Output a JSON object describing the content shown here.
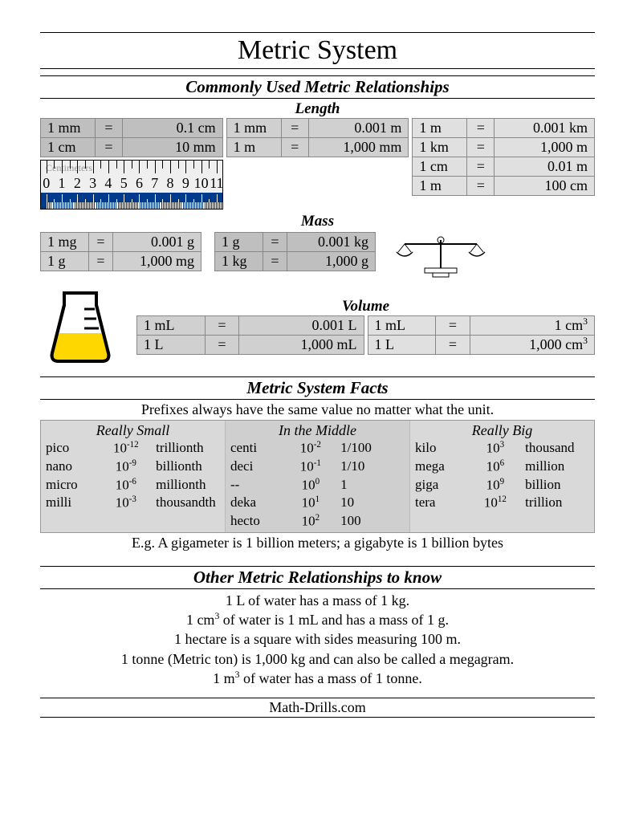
{
  "title": "Metric System",
  "section1": {
    "heading": "Commonly Used Metric Relationships",
    "length_label": "Length",
    "mass_label": "Mass",
    "volume_label": "Volume",
    "length": {
      "col1": [
        {
          "l": "1 mm",
          "r": "0.1 cm"
        },
        {
          "l": "1 cm",
          "r": "10 mm"
        }
      ],
      "col2": [
        {
          "l": "1 mm",
          "r": "0.001 m"
        },
        {
          "l": "1 m",
          "r": "1,000 mm"
        }
      ],
      "col3": [
        {
          "l": "1 m",
          "r": "0.001 km"
        },
        {
          "l": "1 km",
          "r": "1,000 m"
        },
        {
          "l": "1 cm",
          "r": "0.01 m"
        },
        {
          "l": "1 m",
          "r": "100 cm"
        }
      ]
    },
    "ruler_label": "Centimeters",
    "ruler_nums": [
      "0",
      "1",
      "2",
      "3",
      "4",
      "5",
      "6",
      "7",
      "8",
      "9",
      "10",
      "11"
    ],
    "mass": {
      "col1": [
        {
          "l": "1 mg",
          "r": "0.001 g"
        },
        {
          "l": "1 g",
          "r": "1,000 mg"
        }
      ],
      "col2": [
        {
          "l": "1 g",
          "r": "0.001 kg"
        },
        {
          "l": "1 kg",
          "r": "1,000 g"
        }
      ]
    },
    "volume": {
      "col1": [
        {
          "l": "1 mL",
          "r": "0.001 L"
        },
        {
          "l": "1 L",
          "r": "1,000 mL"
        }
      ],
      "col2": [
        {
          "l": "1 mL",
          "r_html": "1 cm<sup>3</sup>"
        },
        {
          "l": "1 L",
          "r_html": "1,000 cm<sup>3</sup>"
        }
      ]
    }
  },
  "section2": {
    "heading": "Metric System Facts",
    "intro": "Prefixes always have the same value no matter what the unit.",
    "cols": {
      "small": {
        "head": "Really Small",
        "rows": [
          {
            "p": "pico",
            "e": "-12",
            "w": "trillionth"
          },
          {
            "p": "nano",
            "e": "-9",
            "w": "billionth"
          },
          {
            "p": "micro",
            "e": "-6",
            "w": "millionth"
          },
          {
            "p": "milli",
            "e": "-3",
            "w": "thousandth"
          }
        ]
      },
      "mid": {
        "head": "In the Middle",
        "rows": [
          {
            "p": "centi",
            "e": "-2",
            "w": "1/100"
          },
          {
            "p": "deci",
            "e": "-1",
            "w": "1/10"
          },
          {
            "p": "--",
            "e": "0",
            "w": "1"
          },
          {
            "p": "deka",
            "e": "1",
            "w": "10"
          },
          {
            "p": "hecto",
            "e": "2",
            "w": "100"
          }
        ]
      },
      "big": {
        "head": "Really Big",
        "rows": [
          {
            "p": "kilo",
            "e": "3",
            "w": "thousand"
          },
          {
            "p": "mega",
            "e": "6",
            "w": "million"
          },
          {
            "p": "giga",
            "e": "9",
            "w": "billion"
          },
          {
            "p": "tera",
            "e": "12",
            "w": "trillion"
          }
        ]
      }
    },
    "example": "E.g. A gigameter is 1 billion meters; a gigabyte is 1 billion bytes"
  },
  "section3": {
    "heading": "Other Metric Relationships to know",
    "lines": [
      "1 L of water has a mass of 1 kg.",
      "1 cm<sup>3</sup> of water is 1 mL and has a mass of 1 g.",
      "1 hectare is a square with sides measuring 100 m.",
      "1 tonne (Metric ton) is 1,000 kg and can also be called a megagram.",
      "1 m<sup>3</sup> of water has a mass of 1 tonne."
    ]
  },
  "footer": "Math-Drills.com",
  "colors": {
    "shade_dark": "#bfbfbf",
    "shade_mid": "#d0d0d0",
    "shade_light": "#e0e0e0",
    "ruler_mm": "#003a8c",
    "beaker_fill": "#ffd700"
  }
}
